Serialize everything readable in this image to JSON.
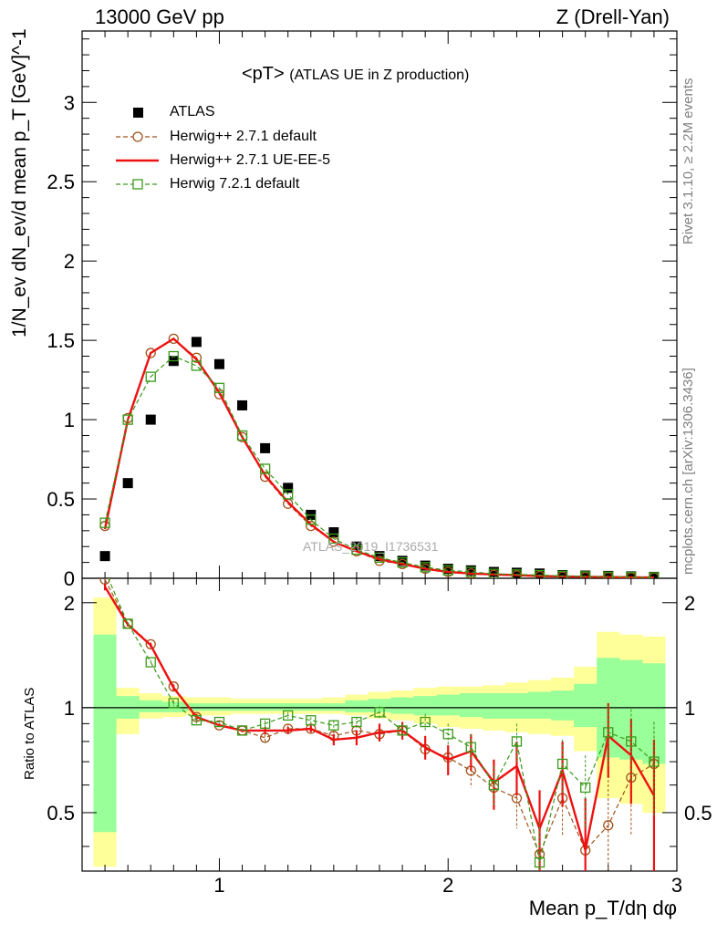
{
  "header": {
    "left": "13000 GeV pp",
    "right": "Z (Drell-Yan)"
  },
  "side_labels": {
    "rivet": "Rivet 3.1.10, ≥ 2.2M events",
    "mcplots": "mcplots.cern.ch [arXiv:1306.3436]"
  },
  "chart_data": [
    {
      "type": "scatter",
      "panel": "main",
      "title_main": "<pT>",
      "title_sub": "(ATLAS UE in Z production)",
      "ylabel": "1/N_ev dN_ev/d mean p_T [GeV]^-1",
      "xlabel": "Mean p_T/dη dφ",
      "watermark": "ATLAS_2019_I1736531",
      "xlim": [
        0.4,
        3.0
      ],
      "ylim": [
        0,
        3.45
      ],
      "yticks": [
        "0",
        "0.5",
        "1",
        "1.5",
        "2",
        "2.5",
        "3"
      ],
      "ytick_values": [
        0,
        0.5,
        1,
        1.5,
        2,
        2.5,
        3
      ],
      "legend_position": "top-left",
      "x": [
        0.5,
        0.6,
        0.7,
        0.8,
        0.9,
        1.0,
        1.1,
        1.2,
        1.3,
        1.4,
        1.5,
        1.6,
        1.7,
        1.8,
        1.9,
        2.0,
        2.1,
        2.2,
        2.3,
        2.4,
        2.5,
        2.6,
        2.7,
        2.8,
        2.9
      ],
      "series": [
        {
          "name": "ATLAS",
          "style": "data",
          "color": "#000000",
          "values": [
            0.14,
            0.6,
            1.0,
            1.37,
            1.49,
            1.35,
            1.09,
            0.82,
            0.57,
            0.4,
            0.29,
            0.2,
            0.14,
            0.11,
            0.08,
            0.06,
            0.05,
            0.04,
            0.035,
            0.03,
            0.02,
            0.017,
            0.015,
            0.012,
            0.009
          ]
        },
        {
          "name": "Herwig++ 2.7.1 default",
          "style": "dashed-circle",
          "color": "#a0521a",
          "values": [
            0.33,
            1.01,
            1.42,
            1.51,
            1.39,
            1.16,
            0.89,
            0.64,
            0.47,
            0.33,
            0.23,
            0.17,
            0.11,
            0.09,
            0.06,
            0.04,
            0.03,
            0.022,
            0.018,
            0.014,
            0.011,
            0.008,
            0.007,
            0.006,
            0.005
          ]
        },
        {
          "name": "Herwig++ 2.7.1 UE-EE-5",
          "style": "solid",
          "color": "#ee1111",
          "values": [
            0.31,
            1.0,
            1.42,
            1.51,
            1.38,
            1.17,
            0.89,
            0.65,
            0.48,
            0.34,
            0.23,
            0.17,
            0.12,
            0.09,
            0.06,
            0.04,
            0.03,
            0.024,
            0.02,
            0.014,
            0.012,
            0.009,
            0.008,
            0.006,
            0.005
          ]
        },
        {
          "name": "Herwig 7.2.1 default",
          "style": "dashed-square",
          "color": "#3a9a1a",
          "values": [
            0.35,
            1.0,
            1.27,
            1.4,
            1.34,
            1.2,
            0.9,
            0.69,
            0.53,
            0.37,
            0.25,
            0.18,
            0.13,
            0.1,
            0.07,
            0.05,
            0.04,
            0.028,
            0.024,
            0.02,
            0.015,
            0.012,
            0.01,
            0.008,
            0.006
          ]
        }
      ]
    },
    {
      "type": "line",
      "panel": "ratio",
      "ylabel": "Ratio to ATLAS",
      "xlim": [
        0.4,
        3.0
      ],
      "ylim": [
        0.34,
        2.35
      ],
      "yticks": [
        "0.5",
        "1",
        "2"
      ],
      "ytick_values": [
        0.5,
        1,
        2
      ],
      "xticks": [
        "1",
        "2",
        "3"
      ],
      "xtick_values": [
        1,
        2,
        3
      ],
      "bin_edges": [
        0.45,
        0.55,
        0.65,
        0.75,
        0.85,
        0.95,
        1.05,
        1.15,
        1.25,
        1.35,
        1.45,
        1.55,
        1.65,
        1.75,
        1.85,
        1.95,
        2.05,
        2.15,
        2.25,
        2.35,
        2.45,
        2.55,
        2.65,
        2.75,
        2.85,
        2.95
      ],
      "band_yellow": [
        [
          0.35,
          2.07
        ],
        [
          0.84,
          1.14
        ],
        [
          0.93,
          1.1
        ],
        [
          0.94,
          1.08
        ],
        [
          0.95,
          1.07
        ],
        [
          0.95,
          1.07
        ],
        [
          0.96,
          1.06
        ],
        [
          0.96,
          1.06
        ],
        [
          0.96,
          1.06
        ],
        [
          0.96,
          1.06
        ],
        [
          0.96,
          1.07
        ],
        [
          0.95,
          1.09
        ],
        [
          0.93,
          1.11
        ],
        [
          0.92,
          1.12
        ],
        [
          0.9,
          1.14
        ],
        [
          0.88,
          1.15
        ],
        [
          0.87,
          1.15
        ],
        [
          0.86,
          1.16
        ],
        [
          0.85,
          1.18
        ],
        [
          0.84,
          1.2
        ],
        [
          0.83,
          1.22
        ],
        [
          0.75,
          1.31
        ],
        [
          0.55,
          1.65
        ],
        [
          0.53,
          1.62
        ],
        [
          0.5,
          1.6
        ]
      ],
      "band_green": [
        [
          0.44,
          1.62
        ],
        [
          0.93,
          1.08
        ],
        [
          0.97,
          1.05
        ],
        [
          0.97,
          1.04
        ],
        [
          0.98,
          1.03
        ],
        [
          0.98,
          1.03
        ],
        [
          0.98,
          1.03
        ],
        [
          0.98,
          1.03
        ],
        [
          0.98,
          1.03
        ],
        [
          0.98,
          1.03
        ],
        [
          0.98,
          1.03
        ],
        [
          0.97,
          1.05
        ],
        [
          0.97,
          1.06
        ],
        [
          0.96,
          1.07
        ],
        [
          0.95,
          1.08
        ],
        [
          0.95,
          1.09
        ],
        [
          0.94,
          1.1
        ],
        [
          0.93,
          1.1
        ],
        [
          0.93,
          1.1
        ],
        [
          0.93,
          1.11
        ],
        [
          0.92,
          1.12
        ],
        [
          0.88,
          1.17
        ],
        [
          0.72,
          1.39
        ],
        [
          0.71,
          1.37
        ],
        [
          0.69,
          1.34
        ]
      ],
      "x": [
        0.5,
        0.6,
        0.7,
        0.8,
        0.9,
        1.0,
        1.1,
        1.2,
        1.3,
        1.4,
        1.5,
        1.6,
        1.7,
        1.8,
        1.9,
        2.0,
        2.1,
        2.2,
        2.3,
        2.4,
        2.5,
        2.6,
        2.7,
        2.8,
        2.9
      ],
      "series": [
        {
          "name": "Herwig++ 2.7.1 default",
          "style": "dashed-circle",
          "color": "#a0521a",
          "values": [
            2.33,
            1.74,
            1.52,
            1.15,
            0.94,
            0.89,
            0.86,
            0.82,
            0.87,
            0.87,
            0.83,
            0.86,
            0.84,
            0.86,
            0.76,
            0.72,
            0.66,
            0.59,
            0.55,
            0.38,
            0.55,
            0.39,
            0.46,
            0.63,
            0.69
          ],
          "err": [
            0.04,
            0.02,
            0.02,
            0.02,
            0.02,
            0.01,
            0.01,
            0.02,
            0.02,
            0.02,
            0.03,
            0.03,
            0.04,
            0.04,
            0.05,
            0.06,
            0.07,
            0.08,
            0.1,
            0.12,
            0.12,
            0.14,
            0.18,
            0.2,
            0.22
          ]
        },
        {
          "name": "Herwig++ 2.7.1 UE-EE-5",
          "style": "solid",
          "color": "#ee1111",
          "values": [
            2.22,
            1.73,
            1.51,
            1.14,
            0.94,
            0.89,
            0.86,
            0.86,
            0.86,
            0.87,
            0.81,
            0.82,
            0.85,
            0.86,
            0.77,
            0.71,
            0.75,
            0.61,
            0.68,
            0.45,
            0.66,
            0.39,
            0.83,
            0.73,
            0.56
          ],
          "err": [
            0.05,
            0.02,
            0.02,
            0.02,
            0.02,
            0.01,
            0.01,
            0.02,
            0.02,
            0.02,
            0.03,
            0.04,
            0.05,
            0.05,
            0.06,
            0.07,
            0.09,
            0.1,
            0.12,
            0.13,
            0.14,
            0.16,
            0.2,
            0.2,
            0.25
          ]
        },
        {
          "name": "Herwig 7.2.1 default",
          "style": "dashed-square",
          "color": "#3a9a1a",
          "values": [
            2.47,
            1.74,
            1.35,
            1.03,
            0.92,
            0.91,
            0.86,
            0.9,
            0.95,
            0.92,
            0.89,
            0.91,
            0.97,
            0.86,
            0.91,
            0.84,
            0.77,
            0.6,
            0.8,
            0.36,
            0.69,
            0.59,
            0.85,
            0.8,
            0.7
          ],
          "err": [
            0.04,
            0.02,
            0.02,
            0.02,
            0.02,
            0.01,
            0.01,
            0.02,
            0.02,
            0.02,
            0.03,
            0.03,
            0.04,
            0.04,
            0.05,
            0.06,
            0.07,
            0.08,
            0.1,
            0.11,
            0.12,
            0.14,
            0.17,
            0.19,
            0.21
          ]
        }
      ]
    }
  ]
}
